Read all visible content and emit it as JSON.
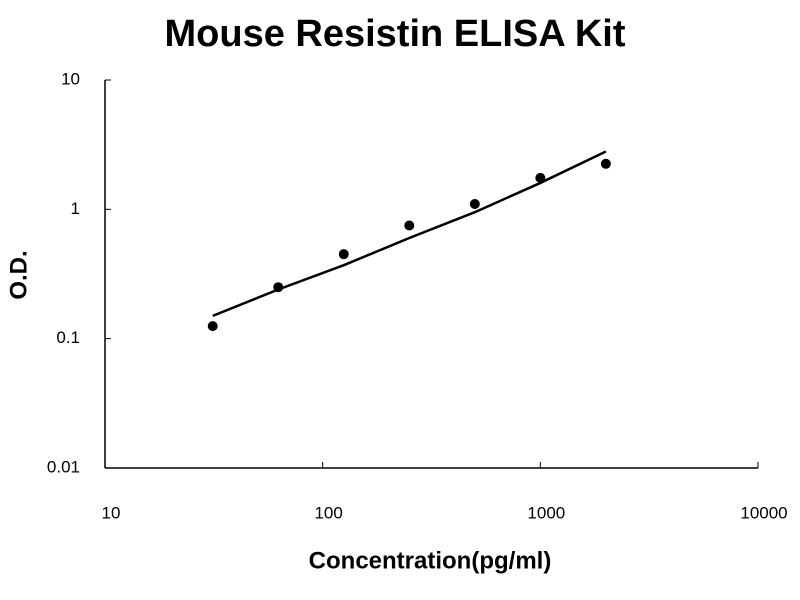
{
  "chart_data": {
    "type": "scatter",
    "title": "Mouse Resistin ELISA Kit",
    "x_label": "Concentration(pg/ml)",
    "y_label": "O.D.",
    "xscale": "log",
    "yscale": "log",
    "xlim": [
      10,
      10000
    ],
    "ylim": [
      0.01,
      10
    ],
    "xticks": [
      10,
      100,
      1000,
      10000
    ],
    "yticks": [
      0.01,
      0.1,
      1,
      10
    ],
    "series": [
      {
        "type": "scatter",
        "color": "#000000",
        "x": [
          31.25,
          62.5,
          125,
          250,
          500,
          1000,
          2000
        ],
        "values": [
          0.125,
          0.25,
          0.45,
          0.75,
          1.1,
          1.75,
          2.25
        ]
      },
      {
        "type": "line",
        "color": "#000000",
        "x": [
          31.25,
          62.5,
          125,
          250,
          500,
          1000,
          2000
        ],
        "values": [
          0.15,
          0.24,
          0.37,
          0.6,
          0.95,
          1.6,
          2.8
        ]
      }
    ]
  }
}
